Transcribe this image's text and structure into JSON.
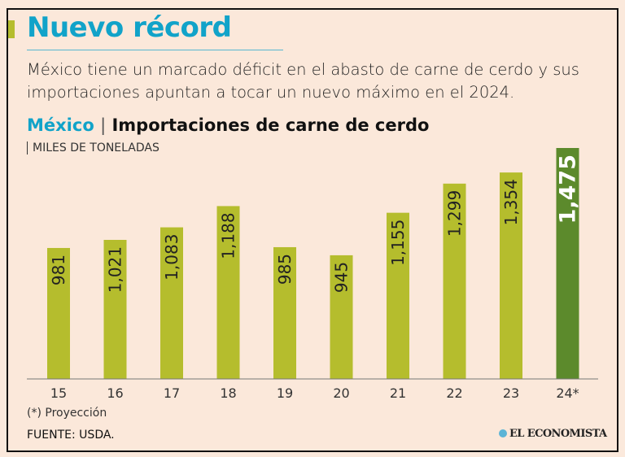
{
  "header": {
    "title": "Nuevo récord",
    "subtitle": "México tiene un marcado déficit en el abasto de carne de cerdo y sus importaciones apuntan a tocar un nuevo máximo en el 2024."
  },
  "chart_data": {
    "type": "bar",
    "title_country": "México",
    "title_separator": "|",
    "title": "Importaciones de carne de cerdo",
    "ylabel": "MILES DE TONELADAS",
    "categories": [
      "15",
      "16",
      "17",
      "18",
      "19",
      "20",
      "21",
      "22",
      "23",
      "24*"
    ],
    "values": [
      981,
      1021,
      1083,
      1188,
      985,
      945,
      1155,
      1299,
      1354,
      1475
    ],
    "value_labels": [
      "981",
      "1,021",
      "1,083",
      "1,188",
      "985",
      "945",
      "1,155",
      "1,299",
      "1,354",
      "1,475"
    ],
    "ylim": [
      334,
      1475
    ],
    "grid": false,
    "colors": {
      "bar": "#b5bd2d",
      "highlight": "#5c8a2c",
      "title_accent": "#11a3c9"
    }
  },
  "footer": {
    "note": "(*) Proyección",
    "source": "FUENTE: USDA.",
    "logo": "EL ECONOMISTA"
  }
}
